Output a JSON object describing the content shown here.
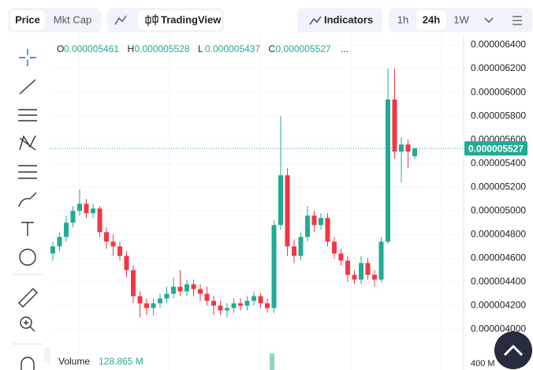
{
  "toolbar": {
    "price": "Price",
    "mkt_cap": "Mkt Cap",
    "tradingview": "TradingView",
    "indicators": "Indicators",
    "intervals": [
      "1h",
      "24h",
      "1W"
    ]
  },
  "ohlc_legend": {
    "labels": [
      "O",
      "H",
      "L",
      "C"
    ],
    "values": [
      "0.000005461",
      "0.000005528",
      "0.000005437",
      "0.000005527"
    ],
    "more": "..."
  },
  "volume": {
    "label": "Volume",
    "value": "128.865 M",
    "axis_label": "400 M"
  },
  "chart_data": {
    "type": "candlestick",
    "up_color": "#22ab94",
    "down_color": "#f23645",
    "open": [
      4.64e-06,
      4.7e-06,
      4.78e-06,
      4.9e-06,
      5e-06,
      5.06e-06,
      4.98e-06,
      5.02e-06,
      4.82e-06,
      4.74e-06,
      4.7e-06,
      4.62e-06,
      4.5e-06,
      4.28e-06,
      4.22e-06,
      4.18e-06,
      4.22e-06,
      4.26e-06,
      4.3e-06,
      4.36e-06,
      4.32e-06,
      4.38e-06,
      4.34e-06,
      4.3e-06,
      4.24e-06,
      4.2e-06,
      4.16e-06,
      4.18e-06,
      4.22e-06,
      4.2e-06,
      4.24e-06,
      4.28e-06,
      4.22e-06,
      4.18e-06,
      4.88e-06,
      5.3e-06,
      4.7e-06,
      4.62e-06,
      4.78e-06,
      4.96e-06,
      4.88e-06,
      4.94e-06,
      4.74e-06,
      4.64e-06,
      4.58e-06,
      4.46e-06,
      4.42e-06,
      4.56e-06,
      4.46e-06,
      4.42e-06,
      4.74e-06,
      5.94e-06,
      5.5e-06,
      5.56e-06,
      5.461e-06
    ],
    "high": [
      4.74e-06,
      4.82e-06,
      4.96e-06,
      5.04e-06,
      5.18e-06,
      5.1e-06,
      5.06e-06,
      5.04e-06,
      4.86e-06,
      4.8e-06,
      4.74e-06,
      4.66e-06,
      4.54e-06,
      4.32e-06,
      4.26e-06,
      4.26e-06,
      4.3e-06,
      4.36e-06,
      4.44e-06,
      4.5e-06,
      4.42e-06,
      4.42e-06,
      4.38e-06,
      4.36e-06,
      4.28e-06,
      4.24e-06,
      4.22e-06,
      4.26e-06,
      4.26e-06,
      4.28e-06,
      4.32e-06,
      4.3e-06,
      4.26e-06,
      4.92e-06,
      5.8e-06,
      5.36e-06,
      4.76e-06,
      4.82e-06,
      5.04e-06,
      5e-06,
      4.98e-06,
      4.98e-06,
      4.78e-06,
      4.68e-06,
      4.62e-06,
      4.5e-06,
      4.62e-06,
      4.6e-06,
      4.5e-06,
      4.78e-06,
      6.2e-06,
      6.2e-06,
      5.62e-06,
      5.6e-06,
      5.528e-06
    ],
    "low": [
      4.58e-06,
      4.66e-06,
      4.74e-06,
      4.86e-06,
      4.96e-06,
      4.94e-06,
      4.94e-06,
      4.78e-06,
      4.68e-06,
      4.62e-06,
      4.58e-06,
      4.44e-06,
      4.22e-06,
      4.1e-06,
      4.12e-06,
      4.12e-06,
      4.18e-06,
      4.22e-06,
      4.26e-06,
      4.28e-06,
      4.28e-06,
      4.28e-06,
      4.24e-06,
      4.2e-06,
      4.12e-06,
      4.12e-06,
      4.1e-06,
      4.14e-06,
      4.16e-06,
      4.16e-06,
      4.2e-06,
      4.18e-06,
      4.14e-06,
      4.14e-06,
      4.84e-06,
      4.62e-06,
      4.56e-06,
      4.58e-06,
      4.74e-06,
      4.82e-06,
      4.84e-06,
      4.7e-06,
      4.6e-06,
      4.54e-06,
      4.4e-06,
      4.38e-06,
      4.38e-06,
      4.42e-06,
      4.36e-06,
      4.4e-06,
      4.72e-06,
      5.44e-06,
      5.24e-06,
      5.36e-06,
      5.437e-06
    ],
    "close": [
      4.7e-06,
      4.78e-06,
      4.9e-06,
      5e-06,
      5.06e-06,
      4.98e-06,
      5.02e-06,
      4.82e-06,
      4.74e-06,
      4.7e-06,
      4.62e-06,
      4.5e-06,
      4.28e-06,
      4.22e-06,
      4.18e-06,
      4.22e-06,
      4.26e-06,
      4.3e-06,
      4.36e-06,
      4.32e-06,
      4.38e-06,
      4.34e-06,
      4.3e-06,
      4.24e-06,
      4.2e-06,
      4.16e-06,
      4.18e-06,
      4.22e-06,
      4.2e-06,
      4.24e-06,
      4.28e-06,
      4.22e-06,
      4.18e-06,
      4.88e-06,
      5.3e-06,
      4.7e-06,
      4.62e-06,
      4.78e-06,
      4.96e-06,
      4.88e-06,
      4.94e-06,
      4.74e-06,
      4.64e-06,
      4.58e-06,
      4.46e-06,
      4.42e-06,
      4.56e-06,
      4.46e-06,
      4.42e-06,
      4.74e-06,
      5.94e-06,
      5.5e-06,
      5.56e-06,
      5.5e-06,
      5.527e-06
    ],
    "ylim": [
      3.85e-06,
      6.48e-06
    ],
    "yticks": [
      {
        "value": 6.4e-06,
        "label": "0.000006400"
      },
      {
        "value": 6.2e-06,
        "label": "0.000006200"
      },
      {
        "value": 6e-06,
        "label": "0.000006000"
      },
      {
        "value": 5.8e-06,
        "label": "0.000005800"
      },
      {
        "value": 5.6e-06,
        "label": "0.000005600"
      },
      {
        "value": 5.4e-06,
        "label": "0.000005400"
      },
      {
        "value": 5.2e-06,
        "label": "0.000005200"
      },
      {
        "value": 5e-06,
        "label": "0.000005000"
      },
      {
        "value": 4.8e-06,
        "label": "0.000004800"
      },
      {
        "value": 4.6e-06,
        "label": "0.000004600"
      },
      {
        "value": 4.4e-06,
        "label": "0.000004400"
      },
      {
        "value": 4.2e-06,
        "label": "0.000004200"
      },
      {
        "value": 4e-06,
        "label": "0.000004000"
      }
    ],
    "last_price": {
      "value": 5.527e-06,
      "label": "0.000005527"
    }
  }
}
